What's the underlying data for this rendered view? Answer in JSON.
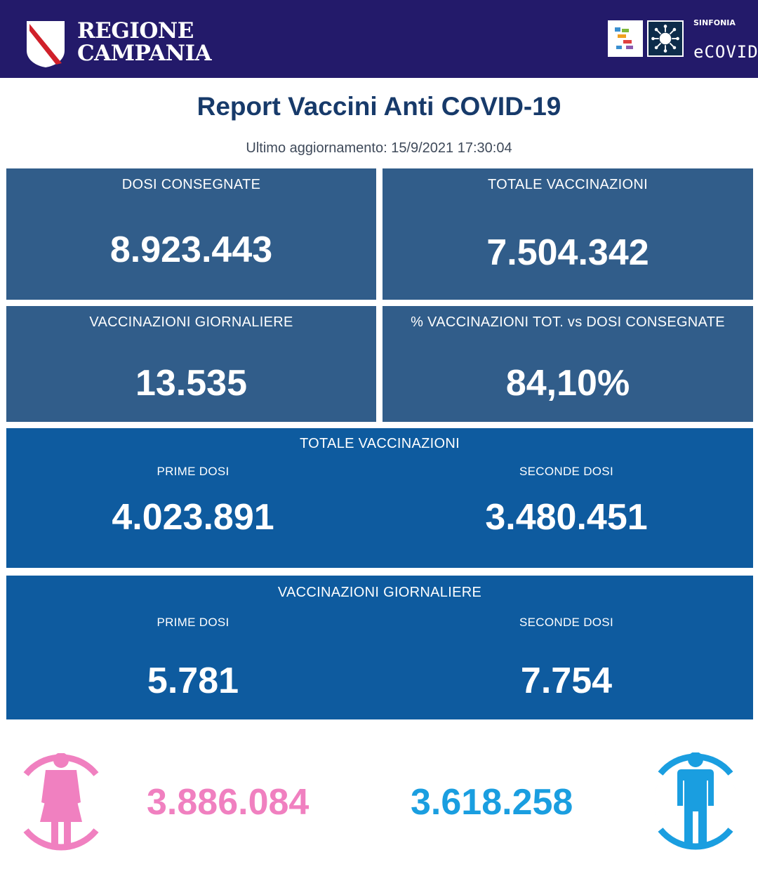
{
  "header": {
    "region_line1": "REGIONE",
    "region_line2": "CAMPANIA",
    "sinfonia_label": "SINFONIA",
    "ecovid_label": "eCOVID",
    "background_color": "#231a6a"
  },
  "title": "Report Vaccini Anti COVID-19",
  "last_update": "Ultimo aggiornamento: 15/9/2021  17:30:04",
  "cards": [
    {
      "label": "DOSI  CONSEGNATE",
      "value": "8.923.443"
    },
    {
      "label": "TOTALE VACCINAZIONI",
      "value": "7.504.342"
    },
    {
      "label": "VACCINAZIONI GIORNALIERE",
      "value": "13.535"
    },
    {
      "label": "% VACCINAZIONI TOT. vs DOSI CONSEGNATE",
      "value": "84,10%"
    }
  ],
  "totale": {
    "title": "TOTALE VACCINAZIONI",
    "prime_label": "PRIME DOSI",
    "prime_value": "4.023.891",
    "seconde_label": "SECONDE DOSI",
    "seconde_value": "3.480.451"
  },
  "giornaliere": {
    "title": "VACCINAZIONI GIORNALIERE",
    "prime_label": "PRIME DOSI",
    "prime_value": "5.781",
    "seconde_label": "SECONDE DOSI",
    "seconde_value": "7.754"
  },
  "gender": {
    "female_value": "3.886.084",
    "male_value": "3.618.258",
    "female_icon": "female-person-icon",
    "male_icon": "male-person-icon",
    "female_color": "#f080c0",
    "male_color": "#1a9ee0"
  },
  "colors": {
    "card": "#315d8a",
    "wide_panel": "#0e5b9f",
    "title": "#173a6a"
  }
}
